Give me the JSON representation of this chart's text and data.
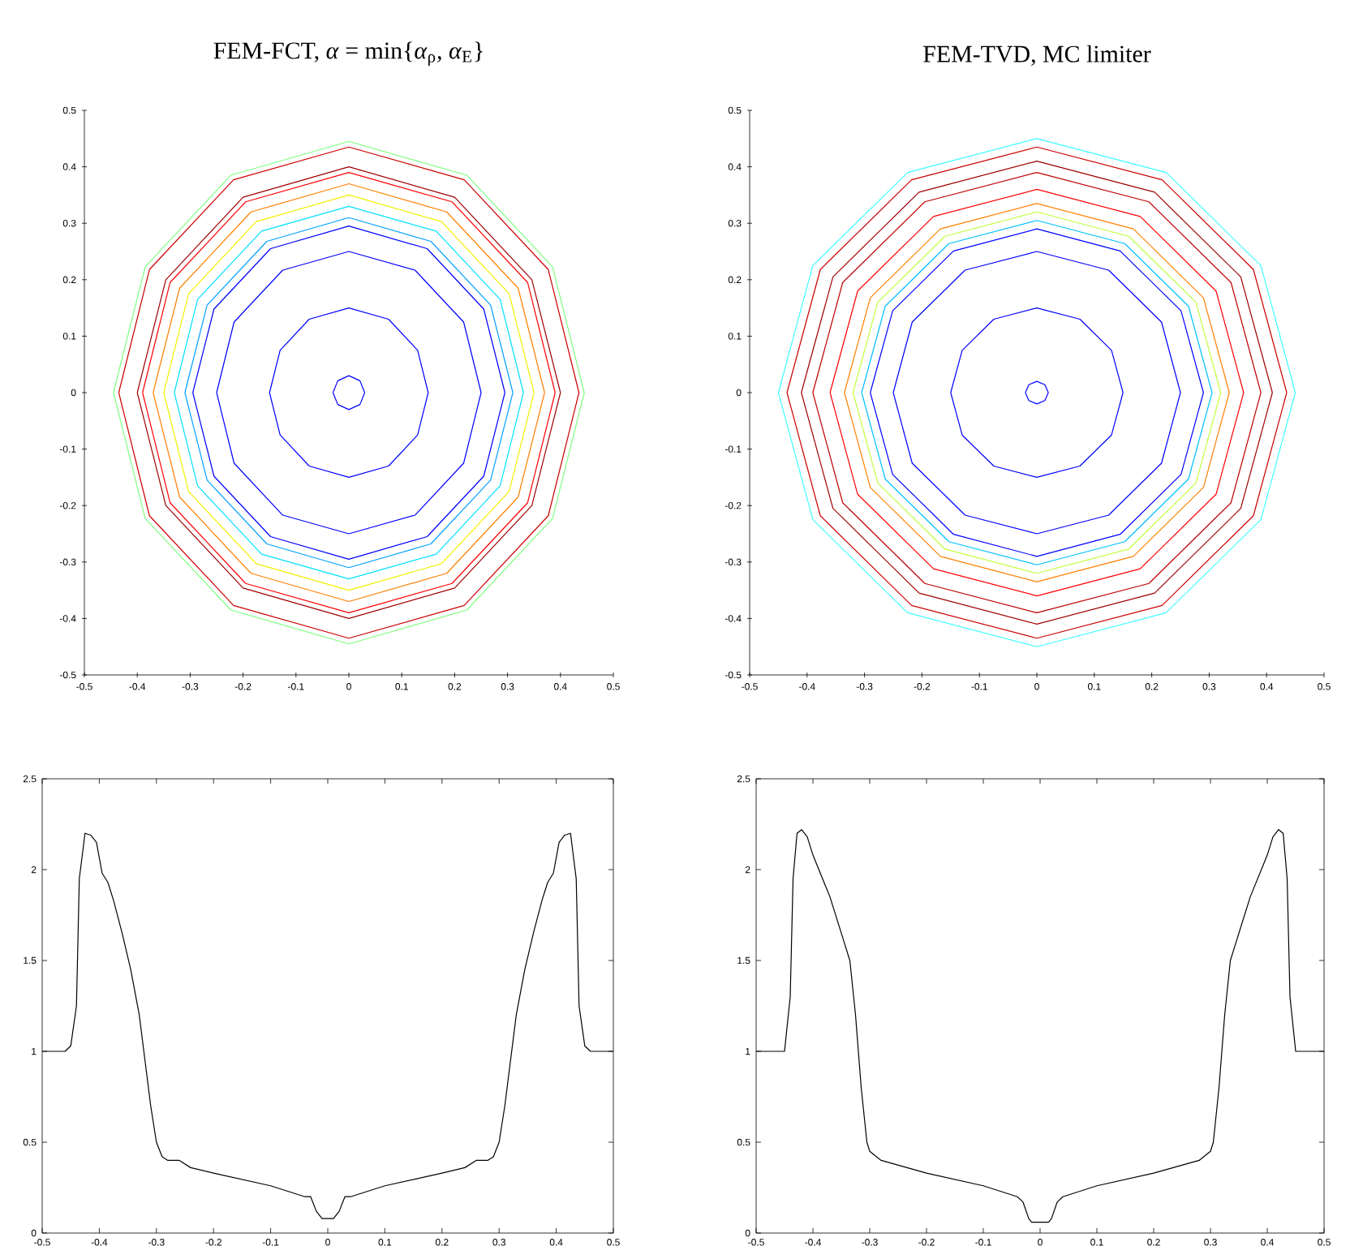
{
  "chart_data": [
    {
      "type": "line",
      "title": "FEM-FCT, *α* = min{*α*$_{ρ}$, *α*$_{E}$}",
      "xlim": [
        -0.5,
        0.5
      ],
      "ylim": [
        -0.5,
        0.5
      ],
      "xticks": [
        -0.5,
        -0.4,
        -0.3,
        -0.2,
        -0.1,
        0,
        0.1,
        0.2,
        0.3,
        0.4,
        0.5
      ],
      "yticks": [
        -0.5,
        -0.4,
        -0.3,
        -0.2,
        -0.1,
        0,
        0.1,
        0.2,
        0.3,
        0.4,
        0.5
      ],
      "series": [
        {
          "color": "#0000ff",
          "x": [
            -0.03,
            -0.021,
            0,
            0.021,
            0.03
          ],
          "values": [
            0,
            0.021,
            0.03,
            0.021,
            0
          ]
        },
        {
          "color": "#0000ff",
          "x": [
            -0.03,
            -0.021,
            0,
            0.021,
            0.03
          ],
          "values": [
            0,
            -0.021,
            -0.03,
            -0.021,
            0
          ]
        },
        {
          "color": "#0000ff",
          "x": [
            -0.15,
            -0.13,
            -0.075,
            0,
            0.075,
            0.13,
            0.15
          ],
          "values": [
            0,
            0.075,
            0.13,
            0.15,
            0.13,
            0.075,
            0
          ]
        },
        {
          "color": "#0000ff",
          "x": [
            -0.15,
            -0.13,
            -0.075,
            0,
            0.075,
            0.13,
            0.15
          ],
          "values": [
            0,
            -0.075,
            -0.13,
            -0.15,
            -0.13,
            -0.075,
            0
          ]
        },
        {
          "color": "#0000ff",
          "x": [
            -0.25,
            -0.217,
            -0.125,
            0,
            0.125,
            0.217,
            0.25
          ],
          "values": [
            0,
            0.125,
            0.217,
            0.25,
            0.217,
            0.125,
            0
          ]
        },
        {
          "color": "#0000ff",
          "x": [
            -0.25,
            -0.217,
            -0.125,
            0,
            0.125,
            0.217,
            0.25
          ],
          "values": [
            0,
            -0.125,
            -0.217,
            -0.25,
            -0.217,
            -0.125,
            0
          ]
        },
        {
          "color": "#0000ff",
          "x": [
            -0.295,
            -0.255,
            -0.148,
            0,
            0.148,
            0.255,
            0.295
          ],
          "values": [
            0,
            0.148,
            0.255,
            0.295,
            0.255,
            0.148,
            0
          ]
        },
        {
          "color": "#0000ff",
          "x": [
            -0.295,
            -0.255,
            -0.148,
            0,
            0.148,
            0.255,
            0.295
          ],
          "values": [
            0,
            -0.148,
            -0.255,
            -0.295,
            -0.255,
            -0.148,
            0
          ]
        },
        {
          "color": "#00a0ff",
          "x": [
            -0.31,
            -0.268,
            -0.155,
            0,
            0.155,
            0.268,
            0.31
          ],
          "values": [
            0,
            0.155,
            0.268,
            0.31,
            0.268,
            0.155,
            0
          ]
        },
        {
          "color": "#00a0ff",
          "x": [
            -0.31,
            -0.268,
            -0.155,
            0,
            0.155,
            0.268,
            0.31
          ],
          "values": [
            0,
            -0.155,
            -0.268,
            -0.31,
            -0.268,
            -0.155,
            0
          ]
        },
        {
          "color": "#00e0ff",
          "x": [
            -0.33,
            -0.286,
            -0.165,
            0,
            0.165,
            0.286,
            0.33
          ],
          "values": [
            0,
            0.165,
            0.286,
            0.33,
            0.286,
            0.165,
            0
          ]
        },
        {
          "color": "#00e0ff",
          "x": [
            -0.33,
            -0.286,
            -0.165,
            0,
            0.165,
            0.286,
            0.33
          ],
          "values": [
            0,
            -0.165,
            -0.286,
            -0.33,
            -0.286,
            -0.165,
            0
          ]
        },
        {
          "color": "#f0f000",
          "x": [
            -0.35,
            -0.303,
            -0.175,
            0,
            0.175,
            0.303,
            0.35
          ],
          "values": [
            0,
            0.175,
            0.303,
            0.35,
            0.303,
            0.175,
            0
          ]
        },
        {
          "color": "#f0f000",
          "x": [
            -0.35,
            -0.303,
            -0.175,
            0,
            0.175,
            0.303,
            0.35
          ],
          "values": [
            0,
            -0.175,
            -0.303,
            -0.35,
            -0.303,
            -0.175,
            0
          ]
        },
        {
          "color": "#ff8000",
          "x": [
            -0.37,
            -0.32,
            -0.185,
            0,
            0.185,
            0.32,
            0.37
          ],
          "values": [
            0,
            0.185,
            0.32,
            0.37,
            0.32,
            0.185,
            0
          ]
        },
        {
          "color": "#ff8000",
          "x": [
            -0.37,
            -0.32,
            -0.185,
            0,
            0.185,
            0.32,
            0.37
          ],
          "values": [
            0,
            -0.185,
            -0.32,
            -0.37,
            -0.32,
            -0.185,
            0
          ]
        },
        {
          "color": "#ff0000",
          "x": [
            -0.39,
            -0.338,
            -0.195,
            0,
            0.195,
            0.338,
            0.39
          ],
          "values": [
            0,
            0.195,
            0.338,
            0.39,
            0.338,
            0.195,
            0
          ]
        },
        {
          "color": "#ff0000",
          "x": [
            -0.39,
            -0.338,
            -0.195,
            0,
            0.195,
            0.338,
            0.39
          ],
          "values": [
            0,
            -0.195,
            -0.338,
            -0.39,
            -0.338,
            -0.195,
            0
          ]
        },
        {
          "color": "#a00000",
          "x": [
            -0.4,
            -0.346,
            -0.2,
            0,
            0.2,
            0.346,
            0.4
          ],
          "values": [
            0,
            0.2,
            0.346,
            0.4,
            0.346,
            0.2,
            0
          ]
        },
        {
          "color": "#a00000",
          "x": [
            -0.4,
            -0.346,
            -0.2,
            0,
            0.2,
            0.346,
            0.4
          ],
          "values": [
            0,
            -0.2,
            -0.346,
            -0.4,
            -0.346,
            -0.2,
            0
          ]
        },
        {
          "color": "#cc0000",
          "x": [
            -0.435,
            -0.377,
            -0.218,
            0,
            0.218,
            0.377,
            0.435
          ],
          "values": [
            0,
            0.218,
            0.377,
            0.435,
            0.377,
            0.218,
            0
          ]
        },
        {
          "color": "#cc0000",
          "x": [
            -0.435,
            -0.377,
            -0.218,
            0,
            0.218,
            0.377,
            0.435
          ],
          "values": [
            0,
            -0.218,
            -0.377,
            -0.435,
            -0.377,
            -0.218,
            0
          ]
        },
        {
          "color": "#80ff80",
          "x": [
            -0.445,
            -0.385,
            -0.223,
            0,
            0.223,
            0.385,
            0.445
          ],
          "values": [
            0,
            0.223,
            0.385,
            0.445,
            0.385,
            0.223,
            0
          ]
        },
        {
          "color": "#80ff80",
          "x": [
            -0.445,
            -0.385,
            -0.223,
            0,
            0.223,
            0.385,
            0.445
          ],
          "values": [
            0,
            -0.223,
            -0.385,
            -0.445,
            -0.385,
            -0.223,
            0
          ]
        }
      ]
    },
    {
      "type": "line",
      "title": "FEM-TVD, MC limiter",
      "xlim": [
        -0.5,
        0.5
      ],
      "ylim": [
        -0.5,
        0.5
      ],
      "xticks": [
        -0.5,
        -0.4,
        -0.3,
        -0.2,
        -0.1,
        0,
        0.1,
        0.2,
        0.3,
        0.4,
        0.5
      ],
      "yticks": [
        -0.5,
        -0.4,
        -0.3,
        -0.2,
        -0.1,
        0,
        0.1,
        0.2,
        0.3,
        0.4,
        0.5
      ],
      "series": [
        {
          "color": "#0000ff",
          "x": [
            -0.02,
            -0.014,
            0,
            0.014,
            0.02
          ],
          "values": [
            0,
            0.014,
            0.02,
            0.014,
            0
          ]
        },
        {
          "color": "#0000ff",
          "x": [
            -0.02,
            -0.014,
            0,
            0.014,
            0.02
          ],
          "values": [
            0,
            -0.014,
            -0.02,
            -0.014,
            0
          ]
        },
        {
          "color": "#0000ff",
          "x": [
            -0.15,
            -0.13,
            -0.075,
            0,
            0.075,
            0.13,
            0.15
          ],
          "values": [
            0,
            0.075,
            0.13,
            0.15,
            0.13,
            0.075,
            0
          ]
        },
        {
          "color": "#0000ff",
          "x": [
            -0.15,
            -0.13,
            -0.075,
            0,
            0.075,
            0.13,
            0.15
          ],
          "values": [
            0,
            -0.075,
            -0.13,
            -0.15,
            -0.13,
            -0.075,
            0
          ]
        },
        {
          "color": "#0000ff",
          "x": [
            -0.25,
            -0.217,
            -0.125,
            0,
            0.125,
            0.217,
            0.25
          ],
          "values": [
            0,
            0.125,
            0.217,
            0.25,
            0.217,
            0.125,
            0
          ]
        },
        {
          "color": "#0000ff",
          "x": [
            -0.25,
            -0.217,
            -0.125,
            0,
            0.125,
            0.217,
            0.25
          ],
          "values": [
            0,
            -0.125,
            -0.217,
            -0.25,
            -0.217,
            -0.125,
            0
          ]
        },
        {
          "color": "#0000ff",
          "x": [
            -0.29,
            -0.251,
            -0.145,
            0,
            0.145,
            0.251,
            0.29
          ],
          "values": [
            0,
            0.145,
            0.251,
            0.29,
            0.251,
            0.145,
            0
          ]
        },
        {
          "color": "#0000ff",
          "x": [
            -0.29,
            -0.251,
            -0.145,
            0,
            0.145,
            0.251,
            0.29
          ],
          "values": [
            0,
            -0.145,
            -0.251,
            -0.29,
            -0.251,
            -0.145,
            0
          ]
        },
        {
          "color": "#00c0ff",
          "x": [
            -0.305,
            -0.264,
            -0.153,
            0,
            0.153,
            0.264,
            0.305
          ],
          "values": [
            0,
            0.153,
            0.264,
            0.305,
            0.264,
            0.153,
            0
          ]
        },
        {
          "color": "#00c0ff",
          "x": [
            -0.305,
            -0.264,
            -0.153,
            0,
            0.153,
            0.264,
            0.305
          ],
          "values": [
            0,
            -0.153,
            -0.264,
            -0.305,
            -0.264,
            -0.153,
            0
          ]
        },
        {
          "color": "#c0ff40",
          "x": [
            -0.32,
            -0.277,
            -0.16,
            0,
            0.16,
            0.277,
            0.32
          ],
          "values": [
            0,
            0.16,
            0.277,
            0.32,
            0.277,
            0.16,
            0
          ]
        },
        {
          "color": "#c0ff40",
          "x": [
            -0.32,
            -0.277,
            -0.16,
            0,
            0.16,
            0.277,
            0.32
          ],
          "values": [
            0,
            -0.16,
            -0.277,
            -0.32,
            -0.277,
            -0.16,
            0
          ]
        },
        {
          "color": "#ff8000",
          "x": [
            -0.335,
            -0.29,
            -0.168,
            0,
            0.168,
            0.29,
            0.335
          ],
          "values": [
            0,
            0.168,
            0.29,
            0.335,
            0.29,
            0.168,
            0
          ]
        },
        {
          "color": "#ff8000",
          "x": [
            -0.335,
            -0.29,
            -0.168,
            0,
            0.168,
            0.29,
            0.335
          ],
          "values": [
            0,
            -0.168,
            -0.29,
            -0.335,
            -0.29,
            -0.168,
            0
          ]
        },
        {
          "color": "#ff0000",
          "x": [
            -0.36,
            -0.312,
            -0.18,
            0,
            0.18,
            0.312,
            0.36
          ],
          "values": [
            0,
            0.18,
            0.312,
            0.36,
            0.312,
            0.18,
            0
          ]
        },
        {
          "color": "#ff0000",
          "x": [
            -0.36,
            -0.312,
            -0.18,
            0,
            0.18,
            0.312,
            0.36
          ],
          "values": [
            0,
            -0.18,
            -0.312,
            -0.36,
            -0.312,
            -0.18,
            0
          ]
        },
        {
          "color": "#c00000",
          "x": [
            -0.39,
            -0.338,
            -0.195,
            0,
            0.195,
            0.338,
            0.39
          ],
          "values": [
            0,
            0.195,
            0.338,
            0.39,
            0.338,
            0.195,
            0
          ]
        },
        {
          "color": "#c00000",
          "x": [
            -0.39,
            -0.338,
            -0.195,
            0,
            0.195,
            0.338,
            0.39
          ],
          "values": [
            0,
            -0.195,
            -0.338,
            -0.39,
            -0.338,
            -0.195,
            0
          ]
        },
        {
          "color": "#a00000",
          "x": [
            -0.41,
            -0.355,
            -0.205,
            0,
            0.205,
            0.355,
            0.41
          ],
          "values": [
            0,
            0.205,
            0.355,
            0.41,
            0.355,
            0.205,
            0
          ]
        },
        {
          "color": "#a00000",
          "x": [
            -0.41,
            -0.355,
            -0.205,
            0,
            0.205,
            0.355,
            0.41
          ],
          "values": [
            0,
            -0.205,
            -0.355,
            -0.41,
            -0.355,
            -0.205,
            0
          ]
        },
        {
          "color": "#cc0000",
          "x": [
            -0.435,
            -0.377,
            -0.218,
            0,
            0.218,
            0.377,
            0.435
          ],
          "values": [
            0,
            0.218,
            0.377,
            0.435,
            0.377,
            0.218,
            0
          ]
        },
        {
          "color": "#cc0000",
          "x": [
            -0.435,
            -0.377,
            -0.218,
            0,
            0.218,
            0.377,
            0.435
          ],
          "values": [
            0,
            -0.218,
            -0.377,
            -0.435,
            -0.377,
            -0.218,
            0
          ]
        },
        {
          "color": "#40ffff",
          "x": [
            -0.45,
            -0.39,
            -0.225,
            0,
            0.225,
            0.39,
            0.45
          ],
          "values": [
            0,
            0.225,
            0.39,
            0.45,
            0.39,
            0.225,
            0
          ]
        },
        {
          "color": "#40ffff",
          "x": [
            -0.45,
            -0.39,
            -0.225,
            0,
            0.225,
            0.39,
            0.45
          ],
          "values": [
            0,
            -0.225,
            -0.39,
            -0.45,
            -0.39,
            -0.225,
            0
          ]
        }
      ]
    },
    {
      "type": "line",
      "xlim": [
        -0.5,
        0.5
      ],
      "ylim": [
        0,
        2.5
      ],
      "xticks": [
        -0.5,
        -0.4,
        -0.3,
        -0.2,
        -0.1,
        0,
        0.1,
        0.2,
        0.3,
        0.4,
        0.5
      ],
      "yticks": [
        0,
        0.5,
        1,
        1.5,
        2,
        2.5
      ],
      "series": [
        {
          "color": "#000000",
          "x": [
            -0.5,
            -0.46,
            -0.45,
            -0.44,
            -0.435,
            -0.425,
            -0.415,
            -0.405,
            -0.395,
            -0.385,
            -0.375,
            -0.36,
            -0.345,
            -0.33,
            -0.32,
            -0.31,
            -0.3,
            -0.29,
            -0.28,
            -0.26,
            -0.24,
            -0.2,
            -0.1,
            -0.06,
            -0.04,
            -0.03,
            -0.02,
            -0.01,
            0,
            0.01,
            0.02,
            0.03,
            0.04,
            0.06,
            0.1,
            0.2,
            0.24,
            0.26,
            0.28,
            0.29,
            0.3,
            0.31,
            0.32,
            0.33,
            0.345,
            0.36,
            0.375,
            0.385,
            0.395,
            0.405,
            0.415,
            0.425,
            0.435,
            0.44,
            0.45,
            0.46,
            0.5
          ],
          "values": [
            1,
            1,
            1.03,
            1.25,
            1.95,
            2.2,
            2.19,
            2.15,
            1.98,
            1.93,
            1.83,
            1.65,
            1.45,
            1.2,
            0.95,
            0.7,
            0.5,
            0.42,
            0.4,
            0.4,
            0.36,
            0.33,
            0.26,
            0.22,
            0.2,
            0.2,
            0.12,
            0.08,
            0.08,
            0.08,
            0.12,
            0.2,
            0.2,
            0.22,
            0.26,
            0.33,
            0.36,
            0.4,
            0.4,
            0.42,
            0.5,
            0.7,
            0.95,
            1.2,
            1.45,
            1.65,
            1.83,
            1.93,
            1.98,
            2.15,
            2.19,
            2.2,
            1.95,
            1.25,
            1.03,
            1,
            1
          ]
        }
      ]
    },
    {
      "type": "line",
      "xlim": [
        -0.5,
        0.5
      ],
      "ylim": [
        0,
        2.5
      ],
      "xticks": [
        -0.5,
        -0.4,
        -0.3,
        -0.2,
        -0.1,
        0,
        0.1,
        0.2,
        0.3,
        0.4,
        0.5
      ],
      "yticks": [
        0,
        0.5,
        1,
        1.5,
        2,
        2.5
      ],
      "series": [
        {
          "color": "#000000",
          "x": [
            -0.5,
            -0.45,
            -0.44,
            -0.435,
            -0.428,
            -0.42,
            -0.41,
            -0.4,
            -0.37,
            -0.345,
            -0.335,
            -0.325,
            -0.315,
            -0.305,
            -0.3,
            -0.28,
            -0.2,
            -0.1,
            -0.04,
            -0.03,
            -0.02,
            -0.015,
            0,
            0.015,
            0.02,
            0.03,
            0.04,
            0.1,
            0.2,
            0.28,
            0.3,
            0.305,
            0.315,
            0.325,
            0.335,
            0.345,
            0.37,
            0.4,
            0.41,
            0.42,
            0.428,
            0.435,
            0.44,
            0.45,
            0.5
          ],
          "values": [
            1,
            1,
            1.3,
            1.95,
            2.2,
            2.22,
            2.18,
            2.08,
            1.85,
            1.6,
            1.5,
            1.2,
            0.8,
            0.5,
            0.45,
            0.4,
            0.33,
            0.26,
            0.2,
            0.17,
            0.08,
            0.06,
            0.06,
            0.06,
            0.08,
            0.17,
            0.2,
            0.26,
            0.33,
            0.4,
            0.45,
            0.5,
            0.8,
            1.2,
            1.5,
            1.6,
            1.85,
            2.08,
            2.18,
            2.22,
            2.2,
            1.95,
            1.3,
            1,
            1
          ]
        }
      ]
    }
  ]
}
